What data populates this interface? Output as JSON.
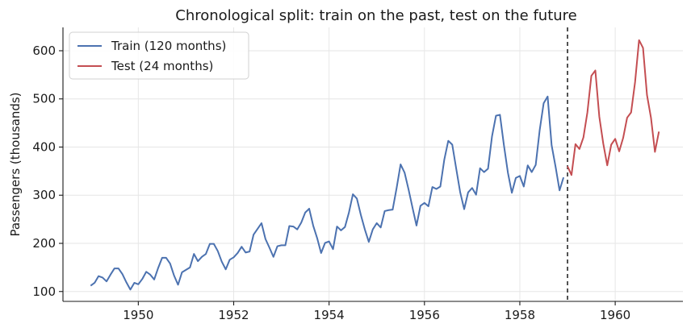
{
  "chart_data": {
    "type": "line",
    "title": "Chronological split: train on the past, test on the future",
    "xlabel": "",
    "ylabel": "Passengers (thousands)",
    "xlim": [
      1948.42,
      1961.42
    ],
    "ylim": [
      79.5,
      648.5
    ],
    "x_ticks": [
      1950,
      1952,
      1954,
      1956,
      1958,
      1960
    ],
    "x_tick_labels": [
      "1950",
      "1952",
      "1954",
      "1956",
      "1958",
      "1960"
    ],
    "y_ticks": [
      100,
      200,
      300,
      400,
      500,
      600
    ],
    "y_tick_labels": [
      "100",
      "200",
      "300",
      "400",
      "500",
      "600"
    ],
    "grid": true,
    "legend_position": "top-left",
    "split_line": {
      "x": 1959.0,
      "style": "dashed",
      "color": "#1a1a1a"
    },
    "series": [
      {
        "name": "Train (120 months)",
        "color": "#4c72b0",
        "x_start": 1949.0,
        "x_step": 0.08333,
        "values": [
          112,
          118,
          132,
          129,
          121,
          135,
          148,
          148,
          136,
          119,
          104,
          118,
          115,
          126,
          141,
          135,
          125,
          149,
          170,
          170,
          158,
          133,
          114,
          140,
          145,
          150,
          178,
          163,
          172,
          178,
          199,
          199,
          184,
          162,
          146,
          166,
          171,
          180,
          193,
          181,
          183,
          218,
          230,
          242,
          209,
          191,
          172,
          194,
          196,
          196,
          236,
          235,
          229,
          243,
          264,
          272,
          237,
          211,
          180,
          201,
          204,
          188,
          235,
          227,
          234,
          264,
          302,
          293,
          259,
          229,
          203,
          229,
          242,
          233,
          267,
          269,
          270,
          315,
          364,
          347,
          312,
          274,
          237,
          278,
          284,
          277,
          317,
          313,
          318,
          374,
          413,
          405,
          355,
          306,
          271,
          306,
          315,
          301,
          356,
          348,
          355,
          422,
          465,
          467,
          404,
          347,
          305,
          336,
          340,
          318,
          362,
          348,
          363,
          435,
          491,
          505,
          404,
          359,
          310,
          337
        ]
      },
      {
        "name": "Test (24 months)",
        "color": "#c44e52",
        "x_start": 1959.0,
        "x_step": 0.08333,
        "values": [
          360,
          342,
          406,
          396,
          420,
          472,
          548,
          559,
          463,
          407,
          362,
          405,
          417,
          391,
          419,
          461,
          472,
          535,
          622,
          606,
          508,
          461,
          390,
          432
        ]
      }
    ]
  }
}
